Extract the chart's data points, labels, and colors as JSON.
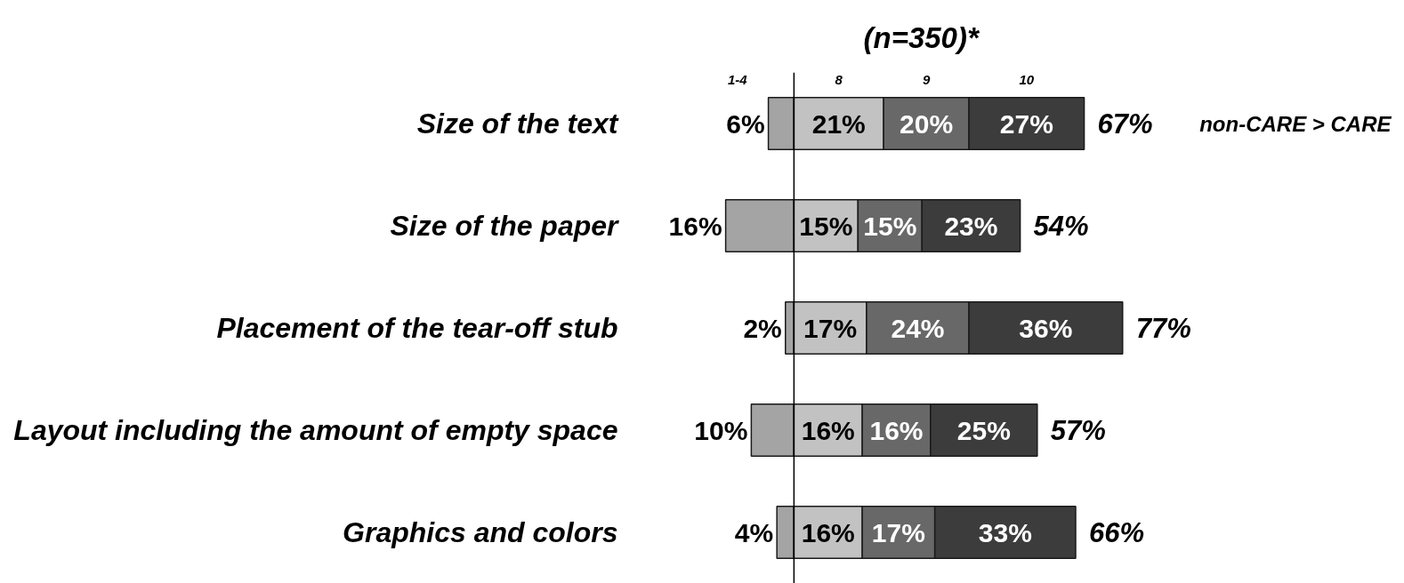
{
  "chart_data": {
    "type": "bar",
    "orientation": "horizontal",
    "stacked": true,
    "title": "(n=350)*",
    "categories": [
      "Size of the text",
      "Size of the paper",
      "Placement of the tear-off stub",
      "Layout including the amount of empty space",
      "Graphics and colors"
    ],
    "series": [
      {
        "name": "1-4",
        "color": "#a4a4a4",
        "values": [
          -6,
          -16,
          -2,
          -10,
          -4
        ]
      },
      {
        "name": "8",
        "color": "#c2c2c2",
        "values": [
          21,
          15,
          17,
          16,
          16
        ],
        "value_labels": [
          "21%",
          "15%",
          "17%",
          "16%",
          "16%"
        ]
      },
      {
        "name": "9",
        "color": "#686868",
        "values": [
          20,
          15,
          24,
          16,
          17
        ],
        "value_labels": [
          "20%",
          "15%",
          "24%",
          "16%",
          "17%"
        ]
      },
      {
        "name": "10",
        "color": "#3c3c3c",
        "values": [
          27,
          23,
          36,
          25,
          33
        ],
        "value_labels": [
          "27%",
          "23%",
          "36%",
          "25%",
          "33%"
        ]
      }
    ],
    "tick_labels": "y",
    "ref_lines": [
      {
        "axis": "x",
        "value": 0,
        "color": "#000000"
      }
    ],
    "annotations": [
      {
        "text": "6%",
        "x": -6,
        "y": "Size of the text"
      },
      {
        "text": "16%",
        "x": -16,
        "y": "Size of the paper"
      },
      {
        "text": "2%",
        "x": -2,
        "y": "Placement of the tear-off stub"
      },
      {
        "text": "10%",
        "x": -10,
        "y": "Layout including the amount of empty space"
      },
      {
        "text": "4%",
        "x": -4,
        "y": "Graphics and colors"
      },
      {
        "text": "67%",
        "x": 68,
        "y": "Size of the text"
      },
      {
        "text": "54%",
        "x": 53,
        "y": "Size of the paper"
      },
      {
        "text": "77%",
        "x": 77,
        "y": "Placement of the tear-off stub"
      },
      {
        "text": "57%",
        "x": 57,
        "y": "Layout including the amount of empty space"
      },
      {
        "text": "66%",
        "x": 66,
        "y": "Graphics and colors"
      },
      "non-CARE > CARE"
    ]
  }
}
